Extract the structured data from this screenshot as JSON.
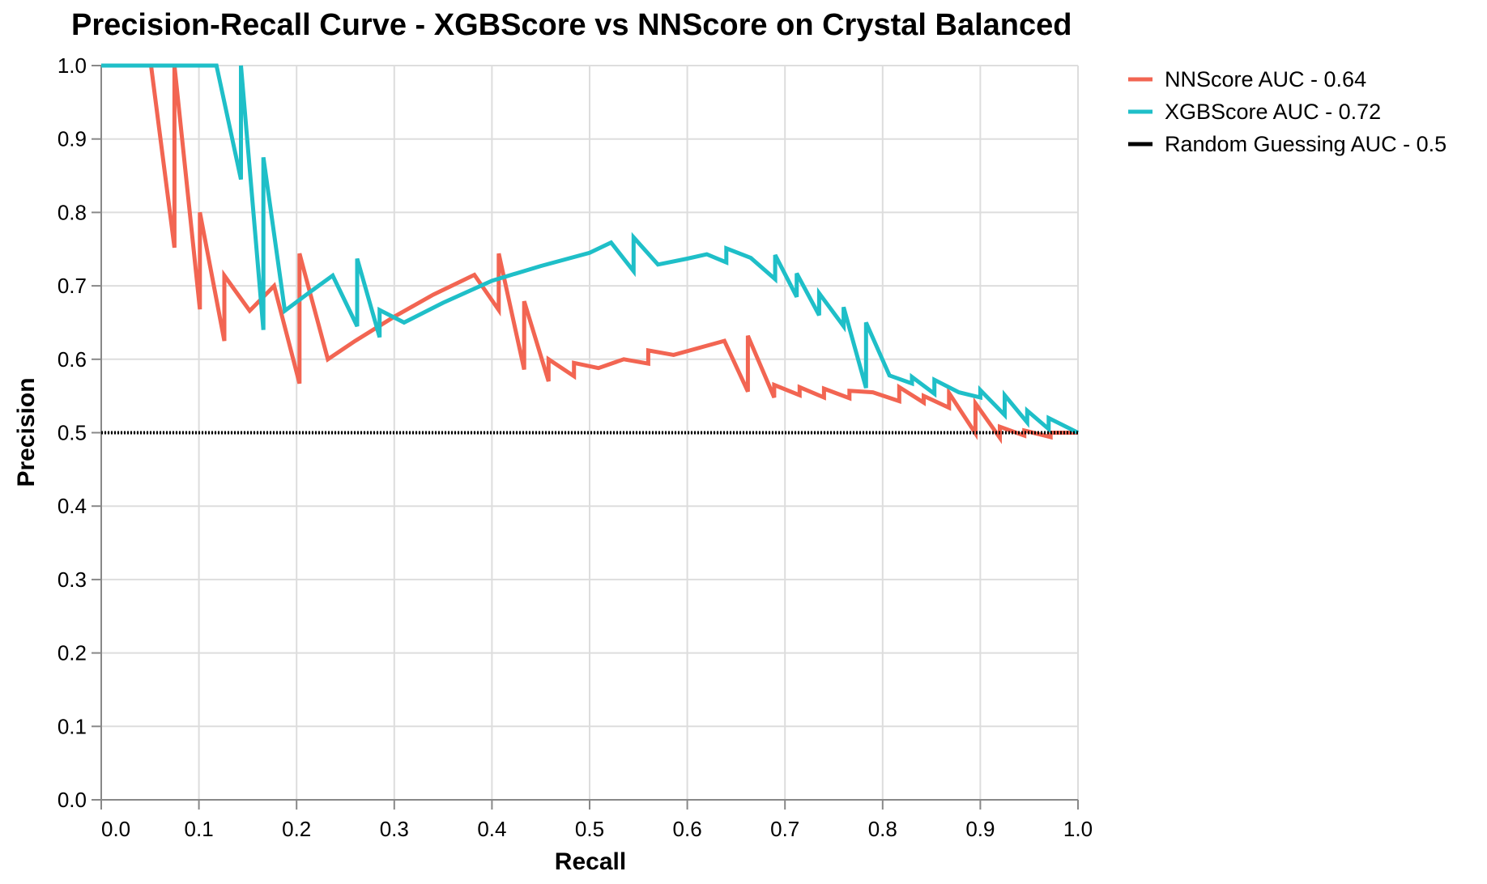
{
  "chart_data": {
    "type": "line",
    "title": "Precision-Recall Curve - XGBScore vs NNScore on Crystal Balanced",
    "xlabel": "Recall",
    "ylabel": "Precision",
    "xlim": [
      0,
      1
    ],
    "ylim": [
      0,
      1
    ],
    "xticks": [
      "0.0",
      "0.1",
      "0.2",
      "0.3",
      "0.4",
      "0.5",
      "0.6",
      "0.7",
      "0.8",
      "0.9",
      "1.0"
    ],
    "yticks": [
      "0.0",
      "0.1",
      "0.2",
      "0.3",
      "0.4",
      "0.5",
      "0.6",
      "0.7",
      "0.8",
      "0.9",
      "1.0"
    ],
    "grid": true,
    "legend_position": "top-right, outside plot",
    "series": [
      {
        "name": "NNScore AUC - 0.64",
        "color": "#f26552",
        "style": "solid",
        "points": [
          [
            0,
            1.0
          ],
          [
            0.051,
            1.0
          ],
          [
            0.075,
            0.752
          ],
          [
            0.075,
            1.0
          ],
          [
            0.101,
            0.668
          ],
          [
            0.101,
            0.8
          ],
          [
            0.126,
            0.625
          ],
          [
            0.126,
            0.714
          ],
          [
            0.152,
            0.666
          ],
          [
            0.177,
            0.7
          ],
          [
            0.203,
            0.567
          ],
          [
            0.203,
            0.744
          ],
          [
            0.232,
            0.6
          ],
          [
            0.26,
            0.625
          ],
          [
            0.3,
            0.658
          ],
          [
            0.34,
            0.688
          ],
          [
            0.382,
            0.715
          ],
          [
            0.407,
            0.667
          ],
          [
            0.407,
            0.744
          ],
          [
            0.433,
            0.586
          ],
          [
            0.433,
            0.679
          ],
          [
            0.458,
            0.57
          ],
          [
            0.458,
            0.6
          ],
          [
            0.484,
            0.577
          ],
          [
            0.484,
            0.595
          ],
          [
            0.509,
            0.588
          ],
          [
            0.535,
            0.6
          ],
          [
            0.56,
            0.594
          ],
          [
            0.56,
            0.612
          ],
          [
            0.586,
            0.606
          ],
          [
            0.638,
            0.625
          ],
          [
            0.662,
            0.556
          ],
          [
            0.662,
            0.632
          ],
          [
            0.689,
            0.548
          ],
          [
            0.689,
            0.565
          ],
          [
            0.715,
            0.551
          ],
          [
            0.715,
            0.562
          ],
          [
            0.74,
            0.548
          ],
          [
            0.74,
            0.56
          ],
          [
            0.766,
            0.547
          ],
          [
            0.766,
            0.557
          ],
          [
            0.79,
            0.555
          ],
          [
            0.817,
            0.543
          ],
          [
            0.817,
            0.562
          ],
          [
            0.842,
            0.541
          ],
          [
            0.842,
            0.55
          ],
          [
            0.868,
            0.534
          ],
          [
            0.868,
            0.554
          ],
          [
            0.895,
            0.499
          ],
          [
            0.895,
            0.54
          ],
          [
            0.92,
            0.493
          ],
          [
            0.92,
            0.508
          ],
          [
            0.945,
            0.496
          ],
          [
            0.945,
            0.503
          ],
          [
            0.972,
            0.494
          ],
          [
            0.972,
            0.5
          ],
          [
            1.0,
            0.5
          ]
        ]
      },
      {
        "name": "XGBScore AUC - 0.72",
        "color": "#1fbfc8",
        "style": "solid",
        "points": [
          [
            0,
            1.0
          ],
          [
            0.118,
            1.0
          ],
          [
            0.143,
            0.845
          ],
          [
            0.143,
            1.0
          ],
          [
            0.166,
            0.64
          ],
          [
            0.166,
            0.875
          ],
          [
            0.188,
            0.666
          ],
          [
            0.212,
            0.69
          ],
          [
            0.237,
            0.714
          ],
          [
            0.262,
            0.645
          ],
          [
            0.262,
            0.737
          ],
          [
            0.285,
            0.63
          ],
          [
            0.285,
            0.667
          ],
          [
            0.31,
            0.65
          ],
          [
            0.35,
            0.677
          ],
          [
            0.4,
            0.707
          ],
          [
            0.45,
            0.727
          ],
          [
            0.5,
            0.745
          ],
          [
            0.522,
            0.759
          ],
          [
            0.545,
            0.72
          ],
          [
            0.545,
            0.766
          ],
          [
            0.57,
            0.729
          ],
          [
            0.6,
            0.737
          ],
          [
            0.62,
            0.743
          ],
          [
            0.64,
            0.732
          ],
          [
            0.64,
            0.751
          ],
          [
            0.665,
            0.738
          ],
          [
            0.69,
            0.709
          ],
          [
            0.69,
            0.742
          ],
          [
            0.712,
            0.685
          ],
          [
            0.712,
            0.717
          ],
          [
            0.735,
            0.66
          ],
          [
            0.735,
            0.69
          ],
          [
            0.76,
            0.645
          ],
          [
            0.76,
            0.671
          ],
          [
            0.783,
            0.561
          ],
          [
            0.783,
            0.65
          ],
          [
            0.807,
            0.578
          ],
          [
            0.83,
            0.567
          ],
          [
            0.83,
            0.576
          ],
          [
            0.853,
            0.553
          ],
          [
            0.853,
            0.572
          ],
          [
            0.878,
            0.555
          ],
          [
            0.9,
            0.548
          ],
          [
            0.9,
            0.558
          ],
          [
            0.925,
            0.524
          ],
          [
            0.925,
            0.551
          ],
          [
            0.948,
            0.514
          ],
          [
            0.948,
            0.53
          ],
          [
            0.97,
            0.505
          ],
          [
            0.97,
            0.52
          ],
          [
            1.0,
            0.5
          ]
        ]
      },
      {
        "name": "Random Guessing AUC - 0.5",
        "color": "#000000",
        "style": "dotted",
        "points": [
          [
            0,
            0.5
          ],
          [
            1.0,
            0.5
          ]
        ]
      }
    ]
  }
}
